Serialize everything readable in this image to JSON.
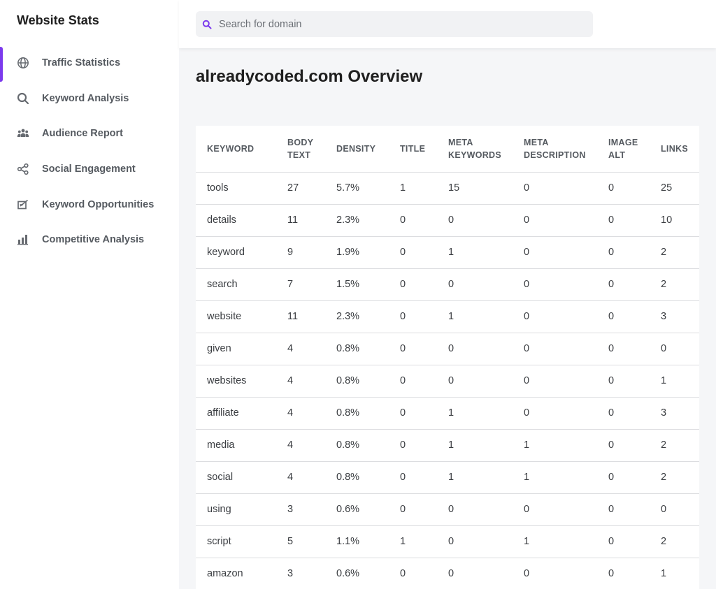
{
  "sidebar": {
    "brand": "Website Stats",
    "items": [
      {
        "label": "Traffic Statistics",
        "icon": "globe-icon",
        "active": true
      },
      {
        "label": "Keyword Analysis",
        "icon": "search-icon",
        "active": false
      },
      {
        "label": "Audience Report",
        "icon": "users-icon",
        "active": false
      },
      {
        "label": "Social Engagement",
        "icon": "share-icon",
        "active": false
      },
      {
        "label": "Keyword Opportunities",
        "icon": "edit-box-icon",
        "active": false
      },
      {
        "label": "Competitive Analysis",
        "icon": "bar-chart-icon",
        "active": false
      }
    ]
  },
  "search": {
    "placeholder": "Search for domain",
    "value": ""
  },
  "main": {
    "title": "alreadycoded.com Overview",
    "table": {
      "columns": [
        "KEYWORD",
        "BODY TEXT",
        "DENSITY",
        "TITLE",
        "META KEYWORDS",
        "META DESCRIPTION",
        "IMAGE ALT",
        "LINKS"
      ],
      "rows": [
        [
          "tools",
          "27",
          "5.7%",
          "1",
          "15",
          "0",
          "0",
          "25"
        ],
        [
          "details",
          "11",
          "2.3%",
          "0",
          "0",
          "0",
          "0",
          "10"
        ],
        [
          "keyword",
          "9",
          "1.9%",
          "0",
          "1",
          "0",
          "0",
          "2"
        ],
        [
          "search",
          "7",
          "1.5%",
          "0",
          "0",
          "0",
          "0",
          "2"
        ],
        [
          "website",
          "11",
          "2.3%",
          "0",
          "1",
          "0",
          "0",
          "3"
        ],
        [
          "given",
          "4",
          "0.8%",
          "0",
          "0",
          "0",
          "0",
          "0"
        ],
        [
          "websites",
          "4",
          "0.8%",
          "0",
          "0",
          "0",
          "0",
          "1"
        ],
        [
          "affiliate",
          "4",
          "0.8%",
          "0",
          "1",
          "0",
          "0",
          "3"
        ],
        [
          "media",
          "4",
          "0.8%",
          "0",
          "1",
          "1",
          "0",
          "2"
        ],
        [
          "social",
          "4",
          "0.8%",
          "0",
          "1",
          "1",
          "0",
          "2"
        ],
        [
          "using",
          "3",
          "0.6%",
          "0",
          "0",
          "0",
          "0",
          "0"
        ],
        [
          "script",
          "5",
          "1.1%",
          "1",
          "0",
          "1",
          "0",
          "2"
        ],
        [
          "amazon",
          "3",
          "0.6%",
          "0",
          "0",
          "0",
          "0",
          "1"
        ]
      ]
    }
  },
  "colors": {
    "accent": "#7c3aed",
    "sidebar_text": "#555a60",
    "background": "#f5f6f8"
  }
}
